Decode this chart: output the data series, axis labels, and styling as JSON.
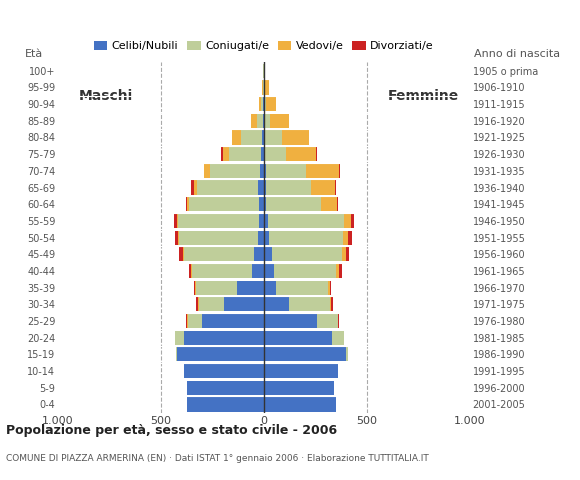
{
  "age_groups": [
    "0-4",
    "5-9",
    "10-14",
    "15-19",
    "20-24",
    "25-29",
    "30-34",
    "35-39",
    "40-44",
    "45-49",
    "50-54",
    "55-59",
    "60-64",
    "65-69",
    "70-74",
    "75-79",
    "80-84",
    "85-89",
    "90-94",
    "95-99",
    "100+"
  ],
  "birth_years": [
    "2001-2005",
    "1996-2000",
    "1991-1995",
    "1986-1990",
    "1981-1985",
    "1976-1980",
    "1971-1975",
    "1966-1970",
    "1961-1965",
    "1956-1960",
    "1951-1955",
    "1946-1950",
    "1941-1945",
    "1936-1940",
    "1931-1935",
    "1926-1930",
    "1921-1925",
    "1916-1920",
    "1911-1915",
    "1906-1910",
    "1905 o prima"
  ],
  "males": {
    "celibe": [
      375,
      375,
      390,
      420,
      390,
      300,
      195,
      130,
      60,
      50,
      30,
      25,
      25,
      30,
      20,
      15,
      10,
      5,
      2,
      0,
      0
    ],
    "coniugato": [
      0,
      0,
      0,
      5,
      40,
      70,
      120,
      200,
      290,
      340,
      380,
      390,
      340,
      295,
      240,
      155,
      100,
      30,
      10,
      5,
      2
    ],
    "vedovo": [
      0,
      0,
      0,
      0,
      0,
      5,
      5,
      5,
      5,
      5,
      5,
      5,
      10,
      15,
      30,
      30,
      45,
      30,
      10,
      5,
      0
    ],
    "divorziato": [
      0,
      0,
      0,
      0,
      0,
      5,
      10,
      5,
      10,
      15,
      15,
      15,
      5,
      15,
      0,
      8,
      0,
      0,
      0,
      0,
      0
    ]
  },
  "females": {
    "nubile": [
      350,
      340,
      360,
      400,
      330,
      260,
      120,
      60,
      50,
      40,
      25,
      20,
      10,
      10,
      10,
      5,
      5,
      5,
      2,
      0,
      0
    ],
    "coniugata": [
      0,
      0,
      0,
      10,
      60,
      100,
      200,
      250,
      300,
      340,
      360,
      370,
      265,
      220,
      195,
      100,
      85,
      25,
      8,
      3,
      2
    ],
    "vedova": [
      0,
      0,
      0,
      0,
      0,
      0,
      5,
      10,
      15,
      20,
      25,
      35,
      80,
      115,
      160,
      150,
      130,
      90,
      50,
      20,
      5
    ],
    "divorziata": [
      0,
      0,
      0,
      0,
      0,
      5,
      10,
      5,
      15,
      15,
      20,
      15,
      5,
      5,
      5,
      5,
      0,
      0,
      0,
      0,
      0
    ]
  },
  "colors": {
    "celibe": "#4472C4",
    "coniugato": "#BFCE9A",
    "vedovo": "#F0B040",
    "divorziato": "#CC2222"
  },
  "legend_labels": [
    "Celibi/Nubili",
    "Coniugati/e",
    "Vedovi/e",
    "Divorziati/e"
  ],
  "title": "Popolazione per età, sesso e stato civile - 2006",
  "subtitle": "COMUNE DI PIAZZA ARMERINA (EN) · Dati ISTAT 1° gennaio 2006 · Elaborazione TUTTITALIA.IT",
  "label_maschi": "Maschi",
  "label_femmine": "Femmine",
  "xlim": 1000,
  "background_color": "#ffffff",
  "dashed_line_color": "#aaaaaa"
}
